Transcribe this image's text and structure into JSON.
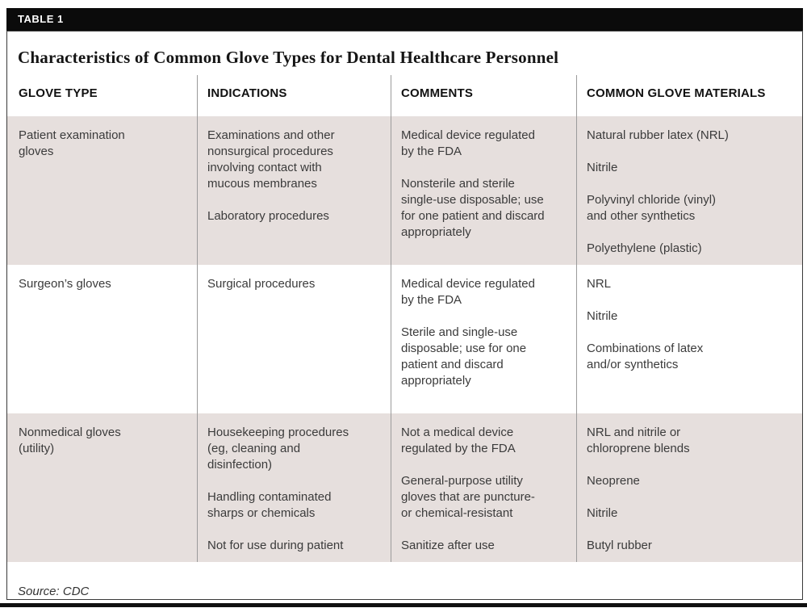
{
  "table_tag": "TABLE 1",
  "title": "Characteristics of Common Glove Types for Dental Healthcare Personnel",
  "columns": [
    "GLOVE TYPE",
    "INDICATIONS",
    "COMMENTS",
    "COMMON GLOVE MATERIALS"
  ],
  "rows": [
    {
      "glove_type": [
        "Patient examination gloves"
      ],
      "indications": [
        "Examinations and other nonsurgical procedures involving contact with mucous membranes",
        "Laboratory procedures"
      ],
      "comments": [
        "Medical device regulated by the FDA",
        "Nonsterile and sterile single-use disposable; use for one patient and discard appropriately"
      ],
      "materials": [
        "Natural rubber latex (NRL)",
        "Nitrile",
        "Polyvinyl chloride (vinyl) and other synthetics",
        "Polyethylene (plastic)"
      ]
    },
    {
      "glove_type": [
        "Surgeon’s gloves"
      ],
      "indications": [
        "Surgical procedures"
      ],
      "comments": [
        "Medical device regulated by the FDA",
        "Sterile and single-use disposable; use for one patient and discard appropriately"
      ],
      "materials": [
        "NRL",
        "Nitrile",
        "Combinations of latex and/or synthetics"
      ]
    },
    {
      "glove_type": [
        "Nonmedical gloves (utility)"
      ],
      "indications": [
        "Housekeeping procedures (eg, cleaning and disinfection)",
        "Handling contaminated sharps or chemicals",
        "Not for use during patient"
      ],
      "comments": [
        "Not a medical device regulated by the FDA",
        "General-purpose utility gloves that are puncture- or chemical-resistant",
        "Sanitize after use"
      ],
      "materials": [
        "NRL and nitrile or chloroprene blends",
        "Neoprene",
        "Nitrile",
        "Butyl rubber"
      ]
    }
  ],
  "source": "Source: CDC",
  "colors": {
    "shaded_row": "#e6dfdd",
    "divider": "#9b9b9b",
    "tag_bar": "#0b0b0b",
    "body_text": "#3b3b3b"
  }
}
